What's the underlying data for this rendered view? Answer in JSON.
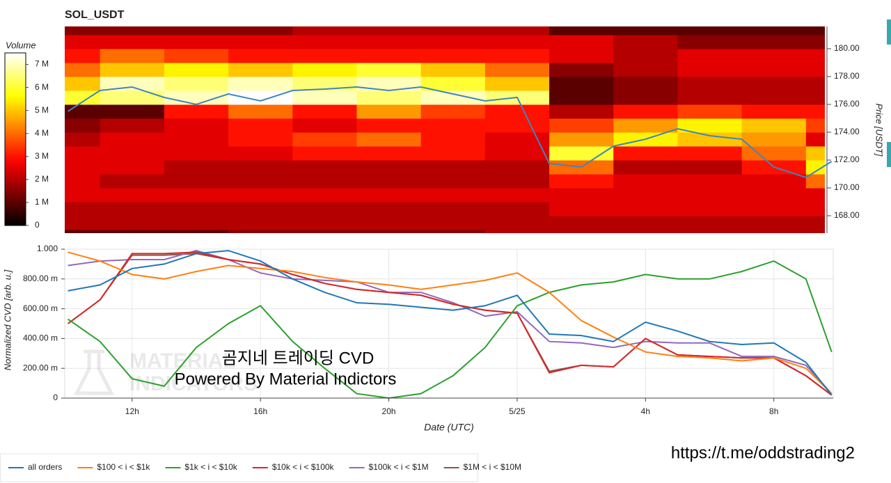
{
  "title": "SOL_USDT",
  "chart_data": [
    {
      "type": "heatmap",
      "colorbar_label": "Volume",
      "colormap": "hot",
      "clim": [
        0,
        7.5
      ],
      "cticks": [
        0,
        {
          "value": 1,
          "label": "1 M"
        },
        {
          "value": 2,
          "label": "2 M"
        },
        {
          "value": 3,
          "label": "3 M"
        },
        {
          "value": 4,
          "label": "4 M"
        },
        {
          "value": 5,
          "label": "5 M"
        },
        {
          "value": 6,
          "label": "6 M"
        },
        {
          "value": 7,
          "label": "7 M"
        }
      ],
      "xlim": [
        9.9,
        33.85
      ],
      "time_bins": [
        9,
        11,
        13,
        15,
        17,
        19,
        21,
        23,
        25,
        27,
        29,
        31,
        33,
        35
      ],
      "price_bins": [
        166,
        167,
        168,
        169,
        170,
        171,
        172,
        173,
        174,
        175,
        176,
        177,
        178,
        179,
        180,
        181,
        182
      ],
      "values": [
        [
          1,
          1,
          1,
          1.5,
          1.5,
          1.5,
          1.5,
          2,
          2,
          2,
          2,
          2,
          2
        ],
        [
          2,
          2,
          2,
          2,
          2,
          2,
          2,
          2,
          2,
          2,
          2,
          2,
          2
        ],
        [
          2,
          2,
          2,
          2,
          2,
          2,
          2,
          2,
          2.5,
          2.5,
          2.5,
          2.5,
          2.5
        ],
        [
          2.5,
          2.5,
          2.5,
          2.5,
          2.5,
          2.5,
          2.5,
          2.5,
          2.5,
          2.5,
          2.5,
          2.5,
          2.5
        ],
        [
          2.5,
          2,
          2,
          2,
          2,
          2,
          2,
          2,
          3,
          2.5,
          2.5,
          2.5,
          4
        ],
        [
          2.5,
          2.5,
          2,
          2,
          2,
          2,
          2,
          2,
          4,
          2,
          2,
          3,
          5.5
        ],
        [
          2.5,
          2.5,
          2.5,
          2.5,
          3,
          3,
          3,
          2.5,
          6,
          3,
          3,
          4,
          5
        ],
        [
          2,
          2.5,
          2.5,
          3,
          3.5,
          4,
          3,
          2.5,
          4.5,
          5.5,
          5,
          4.5,
          2.5
        ],
        [
          1.5,
          2,
          2.5,
          3,
          2.5,
          3,
          3,
          3,
          3.5,
          4.5,
          5.5,
          5,
          3.5
        ],
        [
          1,
          1,
          3,
          4,
          3,
          4.5,
          3.5,
          3,
          2,
          3,
          3.5,
          3,
          3
        ],
        [
          6,
          6.5,
          7,
          7.5,
          7,
          6.5,
          7,
          6.5,
          1,
          1.5,
          2,
          2,
          2
        ],
        [
          5,
          7,
          6.5,
          7,
          6.5,
          7,
          6,
          5,
          1,
          1.5,
          2,
          2,
          2
        ],
        [
          4,
          5,
          5.5,
          5,
          5.5,
          6,
          5,
          4,
          1.5,
          2,
          2.5,
          2.5,
          2.5
        ],
        [
          3,
          4,
          3.5,
          3,
          3,
          3,
          3,
          3,
          2.5,
          2,
          2.5,
          2.5,
          2.5
        ],
        [
          2.5,
          2.5,
          2.5,
          2.5,
          2.5,
          2.5,
          2.5,
          2.5,
          2.5,
          2,
          1.5,
          1.5,
          1.5
        ],
        [
          1.5,
          1.5,
          1.5,
          1.5,
          2,
          2,
          2,
          2,
          1,
          1,
          1,
          1,
          1
        ]
      ],
      "ylabel": "Price [USDT]",
      "ylim": [
        166.75,
        181.6
      ],
      "yticks": [
        {
          "value": 168,
          "label": "168.00"
        },
        {
          "value": 170,
          "label": "170.00"
        },
        {
          "value": 172,
          "label": "172.00"
        },
        {
          "value": 174,
          "label": "174.00"
        },
        {
          "value": 176,
          "label": "176.00"
        },
        {
          "value": 178,
          "label": "178.00"
        },
        {
          "value": 180,
          "label": "180.00"
        }
      ],
      "price": {
        "color": "#3f86bf",
        "x": [
          10,
          11,
          12,
          13,
          14,
          15,
          16,
          17,
          18,
          19,
          20,
          21,
          22,
          23,
          24,
          25,
          26,
          27,
          28,
          29,
          30,
          31,
          32,
          33,
          33.8
        ],
        "values": [
          175.5,
          177,
          177.25,
          176.5,
          176,
          176.75,
          176.25,
          177,
          177.1,
          177.25,
          177,
          177.25,
          176.75,
          176.25,
          176.5,
          171.75,
          171.5,
          173,
          173.5,
          174.25,
          173.75,
          173.5,
          171.5,
          170.75,
          171.9
        ]
      }
    },
    {
      "type": "line",
      "xlabel": "Date (UTC)",
      "ylabel": "Normalized CVD [arb. u.]",
      "x": [
        10,
        11,
        12,
        13,
        14,
        15,
        16,
        17,
        18,
        19,
        20,
        21,
        22,
        23,
        24,
        25,
        26,
        27,
        28,
        29,
        30,
        31,
        32,
        33,
        33.8
      ],
      "xlim": [
        9.9,
        33.85
      ],
      "xticks": [
        {
          "value": 12,
          "label": "12h"
        },
        {
          "value": 16,
          "label": "16h"
        },
        {
          "value": 20,
          "label": "20h"
        },
        {
          "value": 24,
          "label": "5/25"
        },
        {
          "value": 28,
          "label": "4h"
        },
        {
          "value": 32,
          "label": "8h"
        }
      ],
      "ylim": [
        0,
        1
      ],
      "yticks": [
        0,
        {
          "value": 0.2,
          "label": "200.00 m"
        },
        {
          "value": 0.4,
          "label": "400.00 m"
        },
        {
          "value": 0.6,
          "label": "600.00 m"
        },
        {
          "value": 0.8,
          "label": "800.00 m"
        },
        {
          "value": 1,
          "label": "1.000"
        }
      ],
      "grid": true,
      "legend": "bottom",
      "series": [
        {
          "name": "all orders",
          "color": "#1f77b4",
          "values": [
            0.72,
            0.76,
            0.87,
            0.9,
            0.97,
            0.99,
            0.92,
            0.8,
            0.71,
            0.64,
            0.63,
            0.61,
            0.59,
            0.62,
            0.69,
            0.43,
            0.42,
            0.38,
            0.51,
            0.45,
            0.38,
            0.36,
            0.37,
            0.24,
            0.02
          ]
        },
        {
          "name": "$100 < i < $1k",
          "color": "#ff7f0e",
          "values": [
            0.98,
            0.92,
            0.83,
            0.8,
            0.85,
            0.89,
            0.87,
            0.85,
            0.81,
            0.78,
            0.76,
            0.73,
            0.76,
            0.79,
            0.84,
            0.71,
            0.52,
            0.41,
            0.31,
            0.28,
            0.27,
            0.25,
            0.27,
            0.2,
            0.03
          ]
        },
        {
          "name": "$1k < i < $10k",
          "color": "#2ca02c",
          "values": [
            0.53,
            0.38,
            0.13,
            0.08,
            0.34,
            0.5,
            0.62,
            0.38,
            0.2,
            0.03,
            0,
            0.03,
            0.15,
            0.34,
            0.62,
            0.71,
            0.76,
            0.78,
            0.83,
            0.8,
            0.8,
            0.85,
            0.92,
            0.8,
            0.31
          ]
        },
        {
          "name": "$10k < i < $100k",
          "color": "#d62728",
          "values": [
            0.5,
            0.66,
            0.97,
            0.97,
            0.98,
            0.93,
            0.9,
            0.83,
            0.77,
            0.73,
            0.71,
            0.69,
            0.63,
            0.59,
            0.57,
            0.17,
            0.22,
            0.21,
            0.4,
            0.29,
            0.28,
            0.27,
            0.27,
            0.15,
            0.02
          ]
        },
        {
          "name": "$100k < i < $1M",
          "color": "#9467bd",
          "values": [
            0.89,
            0.92,
            0.93,
            0.93,
            0.99,
            0.93,
            0.84,
            0.8,
            0.79,
            0.78,
            0.71,
            0.71,
            0.64,
            0.55,
            0.58,
            0.38,
            0.37,
            0.34,
            0.38,
            0.37,
            0.37,
            0.28,
            0.28,
            0.22,
            0.03
          ]
        },
        {
          "name": "$1M < i < $10M",
          "color": "#8c564b",
          "values": [
            0.5,
            0.66,
            0.96,
            0.96,
            0.97,
            0.93,
            0.9,
            0.83,
            0.77,
            0.73,
            0.71,
            0.69,
            0.63,
            0.59,
            0.57,
            0.18,
            0.22,
            0.21,
            0.4,
            0.29,
            0.28,
            0.27,
            0.27,
            0.15,
            0.02
          ]
        }
      ]
    }
  ],
  "annotations": {
    "watermark": [
      "MATERIAL",
      "INDICATORS"
    ],
    "overlay": [
      "곰지네 트레이딩 CVD",
      "Powered By Material Indictors"
    ],
    "url": "https://t.me/oddstrading2"
  }
}
